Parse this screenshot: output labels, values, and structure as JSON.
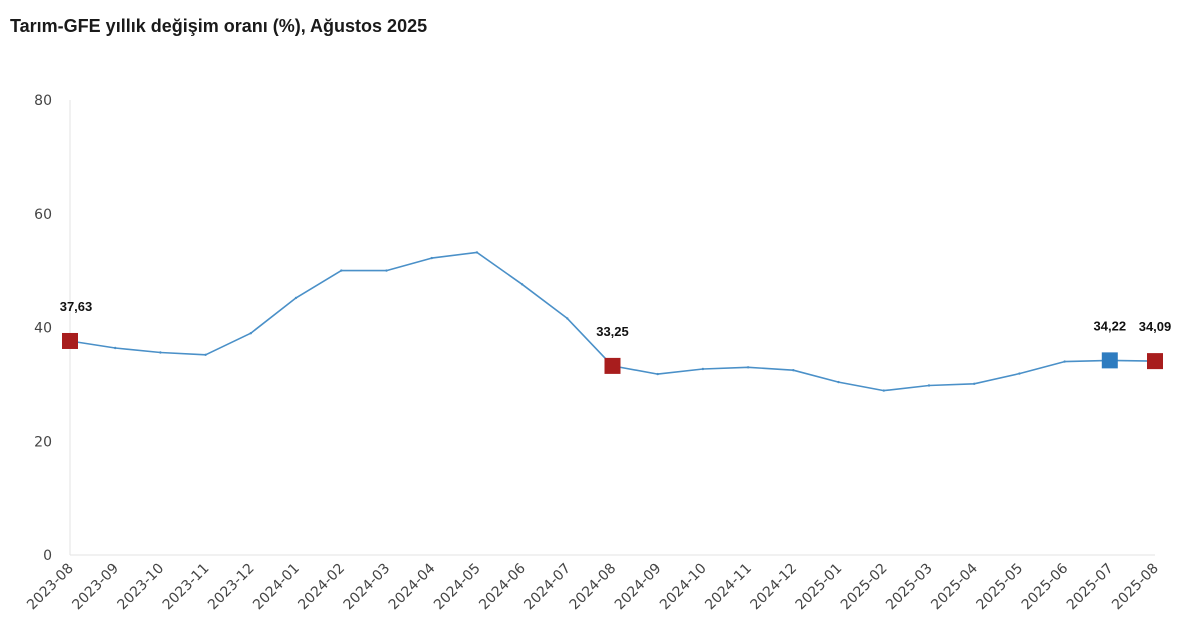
{
  "chart_data": {
    "type": "line",
    "title": "Tarım-GFE yıllık değişim oranı (%), Ağustos 2025",
    "xlabel": "",
    "ylabel": "",
    "ylim": [
      0,
      80
    ],
    "yticks": [
      "0",
      "20",
      "40",
      "60",
      "80"
    ],
    "grid": false,
    "legend": "none",
    "categories": [
      "2023-08",
      "2023-09",
      "2023-10",
      "2023-11",
      "2023-12",
      "2024-01",
      "2024-02",
      "2024-03",
      "2024-04",
      "2024-05",
      "2024-06",
      "2024-07",
      "2024-08",
      "2024-09",
      "2024-10",
      "2024-11",
      "2024-12",
      "2025-01",
      "2025-02",
      "2025-03",
      "2025-04",
      "2025-05",
      "2025-06",
      "2025-07",
      "2025-08"
    ],
    "series": [
      {
        "color": "#4a90c8",
        "values": [
          37.63,
          36.4,
          35.6,
          35.2,
          39.0,
          45.2,
          50.0,
          50.0,
          52.2,
          53.2,
          47.6,
          41.6,
          33.25,
          31.8,
          32.7,
          33.0,
          32.5,
          30.4,
          28.9,
          29.8,
          30.1,
          31.9,
          34.0,
          34.22,
          34.09
        ]
      }
    ],
    "markers": [
      {
        "index": 0,
        "label": "37,63",
        "color": "#a81d1d"
      },
      {
        "index": 12,
        "label": "33,25",
        "color": "#a81d1d"
      },
      {
        "index": 23,
        "label": "34,22",
        "color": "#2e7cc0"
      },
      {
        "index": 24,
        "label": "34,09",
        "color": "#a81d1d"
      }
    ]
  }
}
